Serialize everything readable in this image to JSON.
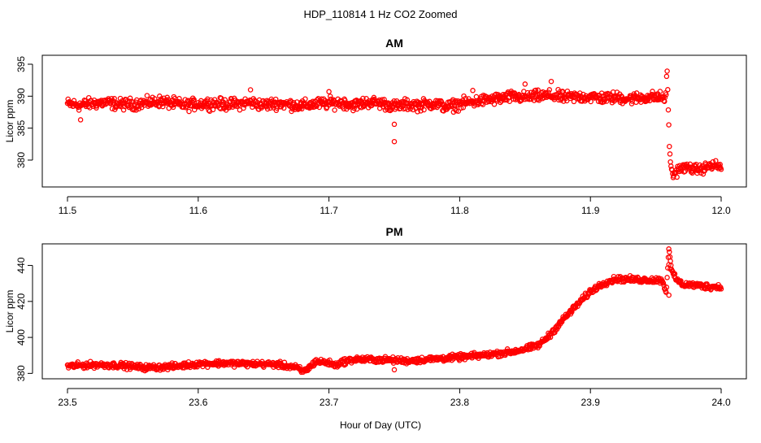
{
  "figure": {
    "title": "HDP_110814  1 Hz CO2 Zoomed",
    "xlabel": "Hour of Day (UTC)"
  },
  "colors": {
    "points": "#ff0000",
    "axes": "#000000"
  },
  "chart_data": [
    {
      "type": "scatter",
      "title": "AM",
      "xlabel": "Hour of Day (UTC)",
      "ylabel": "Licor ppm",
      "xlim": [
        11.5,
        12.0
      ],
      "ylim": [
        375.8,
        396.4
      ],
      "xticks": [
        "11.5",
        "11.6",
        "11.7",
        "11.8",
        "11.9",
        "12.0"
      ],
      "yticks": [
        "380",
        "385",
        "390",
        "395"
      ],
      "grid": false,
      "marker": "open-circle",
      "series": [
        {
          "x": [
            11.5,
            11.51,
            11.52,
            11.53,
            11.54,
            11.55,
            11.56,
            11.57,
            11.58,
            11.59,
            11.6,
            11.61,
            11.62,
            11.63,
            11.64,
            11.65,
            11.66,
            11.67,
            11.68,
            11.69,
            11.7,
            11.71,
            11.72,
            11.73,
            11.74,
            11.75,
            11.76,
            11.77,
            11.78,
            11.79,
            11.8,
            11.81,
            11.82,
            11.83,
            11.84,
            11.85,
            11.86,
            11.87,
            11.88,
            11.89,
            11.9,
            11.91,
            11.92,
            11.93,
            11.94,
            11.95,
            11.958,
            11.9585,
            11.959,
            11.9595,
            11.96,
            11.9605,
            11.961,
            11.962,
            11.963,
            11.964,
            11.966,
            11.968,
            11.97,
            11.975,
            11.98,
            11.985,
            11.99,
            11.995,
            12.0
          ],
          "y": [
            388.8,
            388.6,
            388.9,
            389.0,
            388.7,
            388.8,
            388.9,
            389.2,
            388.9,
            388.6,
            388.8,
            388.9,
            388.7,
            388.8,
            389.0,
            388.6,
            388.9,
            388.7,
            388.5,
            388.8,
            388.9,
            389.0,
            388.6,
            389.1,
            388.9,
            388.4,
            388.7,
            388.6,
            388.9,
            388.3,
            388.8,
            389.1,
            389.4,
            389.6,
            389.9,
            389.8,
            390.0,
            390.1,
            389.8,
            389.9,
            389.9,
            389.7,
            389.8,
            389.6,
            389.8,
            389.9,
            389.7,
            395.3,
            392.2,
            388.0,
            385.3,
            381.5,
            380.3,
            378.6,
            377.2,
            378.0,
            378.2,
            378.8,
            378.7,
            378.9,
            378.5,
            378.6,
            379.0,
            379.2,
            378.9
          ],
          "spread": [
            1.3,
            1.3,
            1.3,
            1.3,
            1.3,
            1.3,
            1.3,
            1.3,
            1.3,
            1.3,
            1.3,
            1.3,
            1.3,
            1.3,
            1.3,
            1.3,
            1.3,
            1.3,
            1.3,
            1.3,
            1.3,
            1.3,
            1.3,
            1.3,
            1.3,
            1.3,
            1.3,
            1.3,
            1.3,
            1.3,
            1.3,
            1.3,
            1.3,
            1.3,
            1.3,
            1.3,
            1.3,
            1.3,
            1.3,
            1.3,
            1.3,
            1.3,
            1.3,
            1.3,
            1.3,
            1.3,
            1.3,
            0.4,
            0.4,
            0.4,
            0.4,
            0.4,
            0.4,
            1.1,
            1.1,
            1.1,
            1.1,
            1.1,
            1.1,
            1.1,
            1.1,
            1.1,
            1.1,
            1.1,
            1.1
          ],
          "outliers": [
            [
              11.51,
              386.3
            ],
            [
              11.64,
              391.0
            ],
            [
              11.75,
              382.9
            ],
            [
              11.75,
              385.6
            ],
            [
              11.7,
              390.7
            ],
            [
              11.87,
              392.3
            ],
            [
              11.85,
              391.9
            ],
            [
              11.81,
              390.9
            ]
          ]
        }
      ]
    },
    {
      "type": "scatter",
      "title": "PM",
      "xlabel": "Hour of Day (UTC)",
      "ylabel": "Licor ppm",
      "xlim": [
        23.5,
        24.0
      ],
      "ylim": [
        377.0,
        452.0
      ],
      "xticks": [
        "23.5",
        "23.6",
        "23.7",
        "23.8",
        "23.9",
        "24.0"
      ],
      "yticks": [
        "380",
        "400",
        "420",
        "440"
      ],
      "grid": false,
      "marker": "open-circle",
      "series": [
        {
          "x": [
            23.5,
            23.52,
            23.54,
            23.56,
            23.58,
            23.6,
            23.62,
            23.64,
            23.66,
            23.675,
            23.68,
            23.685,
            23.69,
            23.7,
            23.705,
            23.71,
            23.72,
            23.74,
            23.76,
            23.78,
            23.8,
            23.82,
            23.84,
            23.85,
            23.86,
            23.865,
            23.87,
            23.875,
            23.88,
            23.89,
            23.9,
            23.91,
            23.92,
            23.94,
            23.955,
            23.958,
            23.96,
            23.962,
            23.965,
            23.97,
            23.98,
            23.99,
            24.0
          ],
          "y": [
            384.0,
            384.8,
            384.5,
            383.2,
            383.8,
            385.3,
            385.7,
            385.3,
            385.0,
            383.2,
            381.0,
            383.2,
            386.8,
            385.8,
            384.5,
            386.4,
            387.8,
            387.6,
            387.0,
            388.0,
            389.0,
            390.2,
            392.0,
            393.5,
            395.6,
            398.6,
            402.2,
            406.5,
            410.7,
            418.2,
            425.5,
            430.2,
            432.5,
            432.0,
            431.8,
            424.5,
            450.0,
            437.5,
            432.8,
            429.5,
            429.0,
            428.3,
            428.0
          ],
          "spread": [
            2.4,
            2.4,
            2.4,
            2.4,
            2.4,
            2.4,
            2.4,
            2.4,
            2.4,
            2.4,
            2.4,
            2.4,
            2.4,
            2.4,
            2.4,
            2.4,
            2.4,
            2.4,
            2.4,
            2.4,
            2.4,
            2.4,
            2.4,
            2.4,
            2.4,
            2.4,
            2.4,
            2.4,
            2.4,
            2.4,
            2.4,
            2.4,
            2.4,
            2.4,
            2.4,
            0.8,
            0.8,
            0.8,
            2.4,
            2.4,
            2.4,
            2.4,
            2.4
          ],
          "outliers": [
            [
              23.75,
              382.0
            ],
            [
              23.96,
              423.5
            ],
            [
              23.96,
              440.5
            ],
            [
              23.961,
              438.0
            ]
          ]
        }
      ]
    }
  ]
}
